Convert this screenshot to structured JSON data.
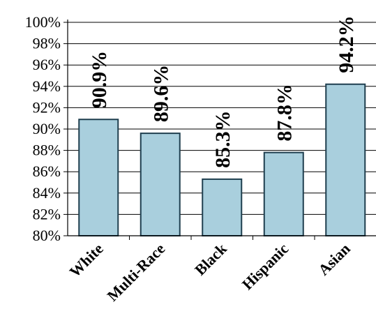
{
  "chart_data": {
    "type": "bar",
    "categories": [
      "White",
      "Multi-Race",
      "Black",
      "Hispanic",
      "Asian"
    ],
    "values": [
      90.9,
      89.6,
      85.3,
      87.8,
      94.2
    ],
    "data_labels": [
      "90.9%",
      "89.6%",
      "85.3%",
      "87.8%",
      "94.2%"
    ],
    "ylim": [
      80,
      100
    ],
    "yticks": [
      80,
      82,
      84,
      86,
      88,
      90,
      92,
      94,
      96,
      98,
      100
    ],
    "ytick_labels": [
      "80%",
      "82%",
      "84%",
      "86%",
      "88%",
      "90%",
      "92%",
      "94%",
      "96%",
      "98%",
      "100%"
    ],
    "grid": true,
    "bar_color": "#a9cfdd",
    "bar_edge_color": "#1f3f4f"
  }
}
